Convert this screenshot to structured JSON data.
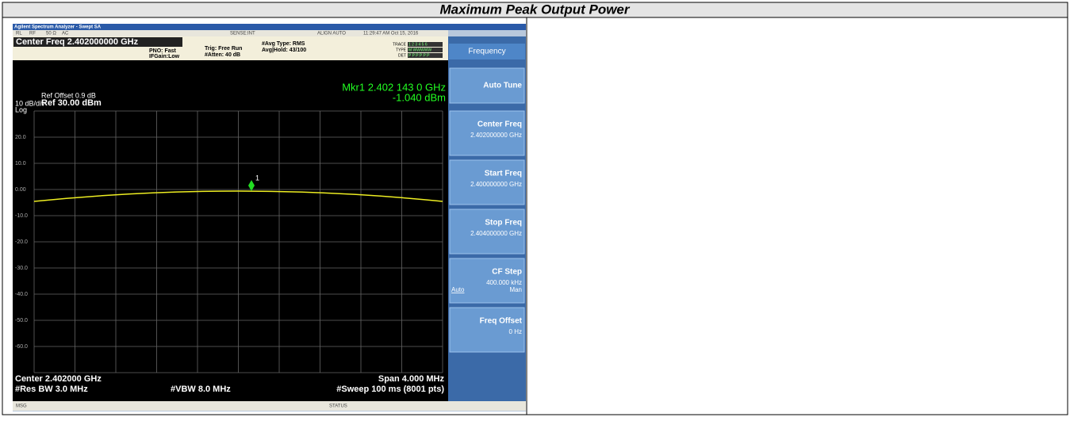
{
  "header": {
    "title": "Maximum Peak Output Power"
  },
  "analyzer": {
    "window_title": "Agilent Spectrum Analyzer - Swept SA",
    "status_bar": [
      "RL",
      "RF",
      "50 Ω",
      "AC",
      "SENSE:INT",
      "ALIGN AUTO",
      "11:29:47 AM Oct 15, 2016"
    ],
    "center_freq": "Center Freq 2.402000000 GHz",
    "settings": [
      "PNO: Fast",
      "IFGain:Low",
      "Trig: Free Run",
      "#Atten: 40 dB",
      "#Avg Type: RMS",
      "Avg|Hold: 43/100"
    ],
    "trace_info": {
      "labels": [
        "TRACE",
        "TYPE",
        "DET"
      ],
      "values": [
        "1 2 3 4 5 6",
        "M WWWWW",
        "P P P P P P"
      ]
    },
    "ref_offset": "Ref Offset 0.9 dB",
    "scale": "10 dB/div",
    "ref_level": "Ref 30.00 dBm",
    "scale_type": "Log",
    "marker_freq": "Mkr1 2.402 143 0 GHz",
    "marker_level": "-1.040 dBm",
    "marker_number": "1",
    "y_labels": [
      "20.0",
      "10.0",
      "0.00",
      "-10.0",
      "-20.0",
      "-30.0",
      "-40.0",
      "-50.0",
      "-60.0"
    ],
    "footer": [
      "Center 2.402000 GHz",
      "Span 4.000 MHz",
      "#Res BW 3.0 MHz",
      "#VBW 8.0 MHz",
      "#Sweep 100 ms (8001 pts)"
    ],
    "message_bar": [
      "MSG",
      "STATUS"
    ],
    "menu_title": "Frequency",
    "softkeys": [
      {
        "label": "Auto Tune"
      },
      {
        "label": "Center Freq",
        "value": "2.402000000 GHz"
      },
      {
        "label": "Start Freq",
        "value": "2.400000000 GHz"
      },
      {
        "label": "Stop Freq",
        "value": "2.404000000 GHz"
      },
      {
        "label": "CF Step",
        "value": "400.000 kHz",
        "options": [
          "Auto",
          "Man"
        ]
      },
      {
        "label": "Freq Offset",
        "value": "0 Hz"
      }
    ]
  }
}
